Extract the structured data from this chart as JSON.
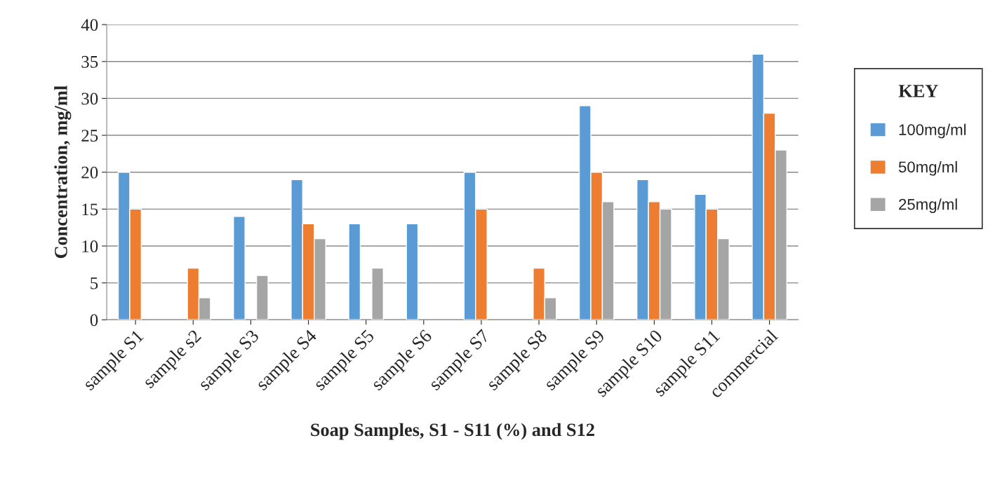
{
  "chart_data": {
    "type": "bar",
    "xlabel": "Soap Samples, S1 - S11 (%) and S12",
    "ylabel": "Concentration, mg/ml",
    "legend_title": "KEY",
    "categories": [
      "sample S1",
      "sample s2",
      "sample S3",
      "sample S4",
      "sample S5",
      "sample S6",
      "sample S7",
      "sample S8",
      "sample S9",
      "sample S10",
      "sample S11",
      "commercial"
    ],
    "series": [
      {
        "name": "100mg/ml",
        "color": "#5b9bd5",
        "values": [
          20,
          null,
          14,
          19,
          13,
          13,
          20,
          null,
          29,
          19,
          17,
          36
        ]
      },
      {
        "name": "50mg/ml",
        "color": "#ed7d31",
        "values": [
          15,
          7,
          null,
          13,
          null,
          null,
          15,
          7,
          20,
          16,
          15,
          28
        ]
      },
      {
        "name": "25mg/ml",
        "color": "#a5a5a5",
        "values": [
          null,
          3,
          6,
          11,
          7,
          null,
          null,
          3,
          16,
          15,
          11,
          23
        ]
      }
    ],
    "ylim": [
      0,
      40
    ],
    "yticks": [
      0,
      5,
      10,
      15,
      20,
      25,
      30,
      35,
      40
    ],
    "grid": "y",
    "legend": "right"
  }
}
